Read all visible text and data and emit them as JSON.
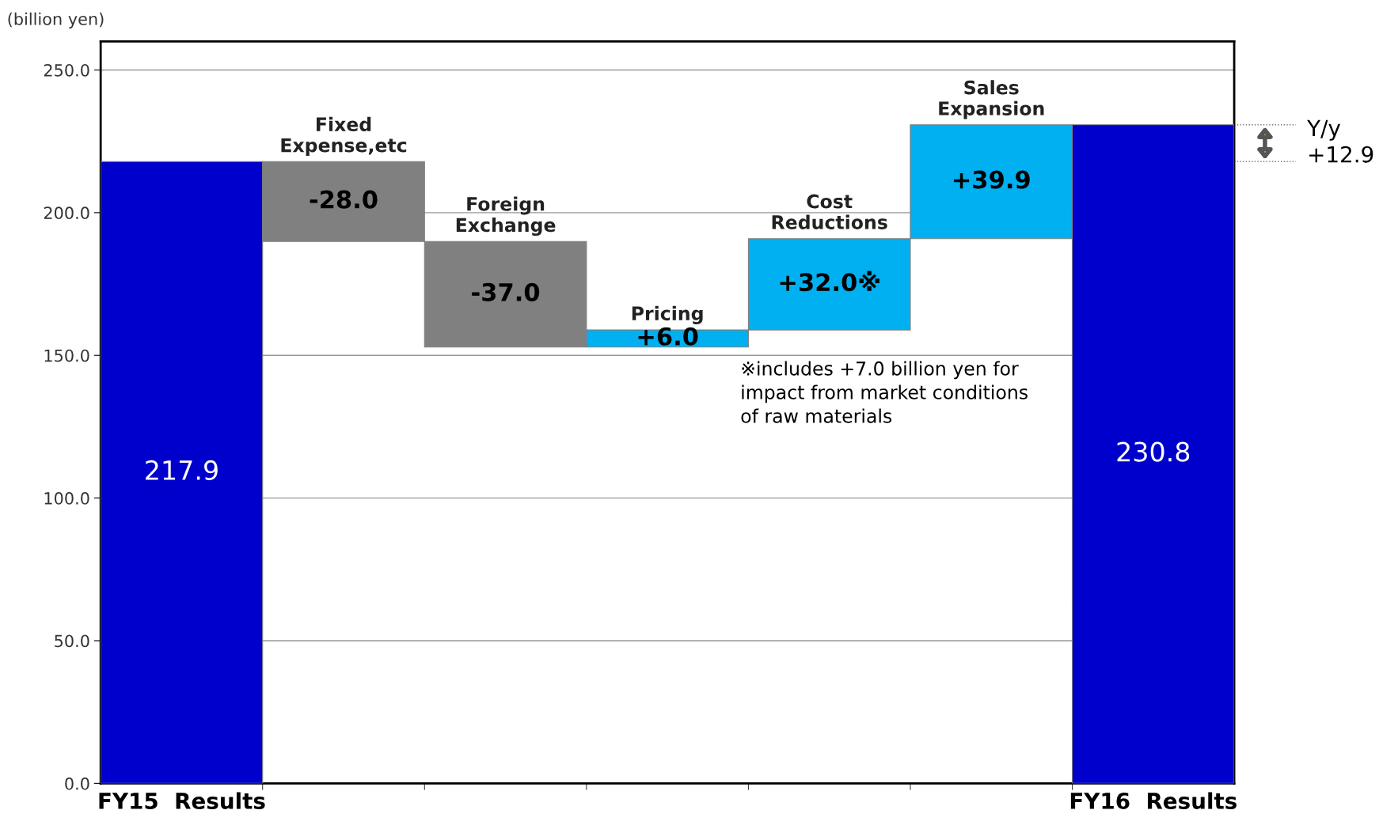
{
  "chart_data": {
    "type": "bar",
    "ylabel": "(billion yen)",
    "categories": [
      "FY15  Results",
      "Fixed Expense,etc",
      "Foreign Exchange",
      "Pricing",
      "Cost Reductions",
      "Sales Expansion",
      "FY16  Results"
    ],
    "values": [
      217.9,
      -28.0,
      -37.0,
      6.0,
      32.0,
      39.9,
      230.8
    ],
    "base": [
      0,
      217.9,
      189.9,
      152.9,
      158.9,
      190.9,
      0
    ],
    "colors": [
      "#0000cc",
      "#808080",
      "#808080",
      "#00b0f0",
      "#00b0f0",
      "#00b0f0",
      "#0000cc"
    ],
    "value_labels": [
      "217.9",
      "-28.0",
      "-37.0",
      "+6.0",
      "+32.0※",
      "+39.9",
      "230.8"
    ],
    "ylim": [
      0,
      260
    ],
    "yticks": [
      {
        "value": 0,
        "label": "0.0"
      },
      {
        "value": 50,
        "label": "50.0"
      },
      {
        "value": 100,
        "label": "100.0"
      },
      {
        "value": 150,
        "label": "150.0"
      },
      {
        "value": 200,
        "label": "200.0"
      },
      {
        "value": 250,
        "label": "250.0"
      }
    ],
    "grid": "y",
    "annotations": [
      "※includes +7.0 billion yen for\nimpact from market conditions\nof raw materials",
      "Y/y\n+12.9"
    ]
  }
}
